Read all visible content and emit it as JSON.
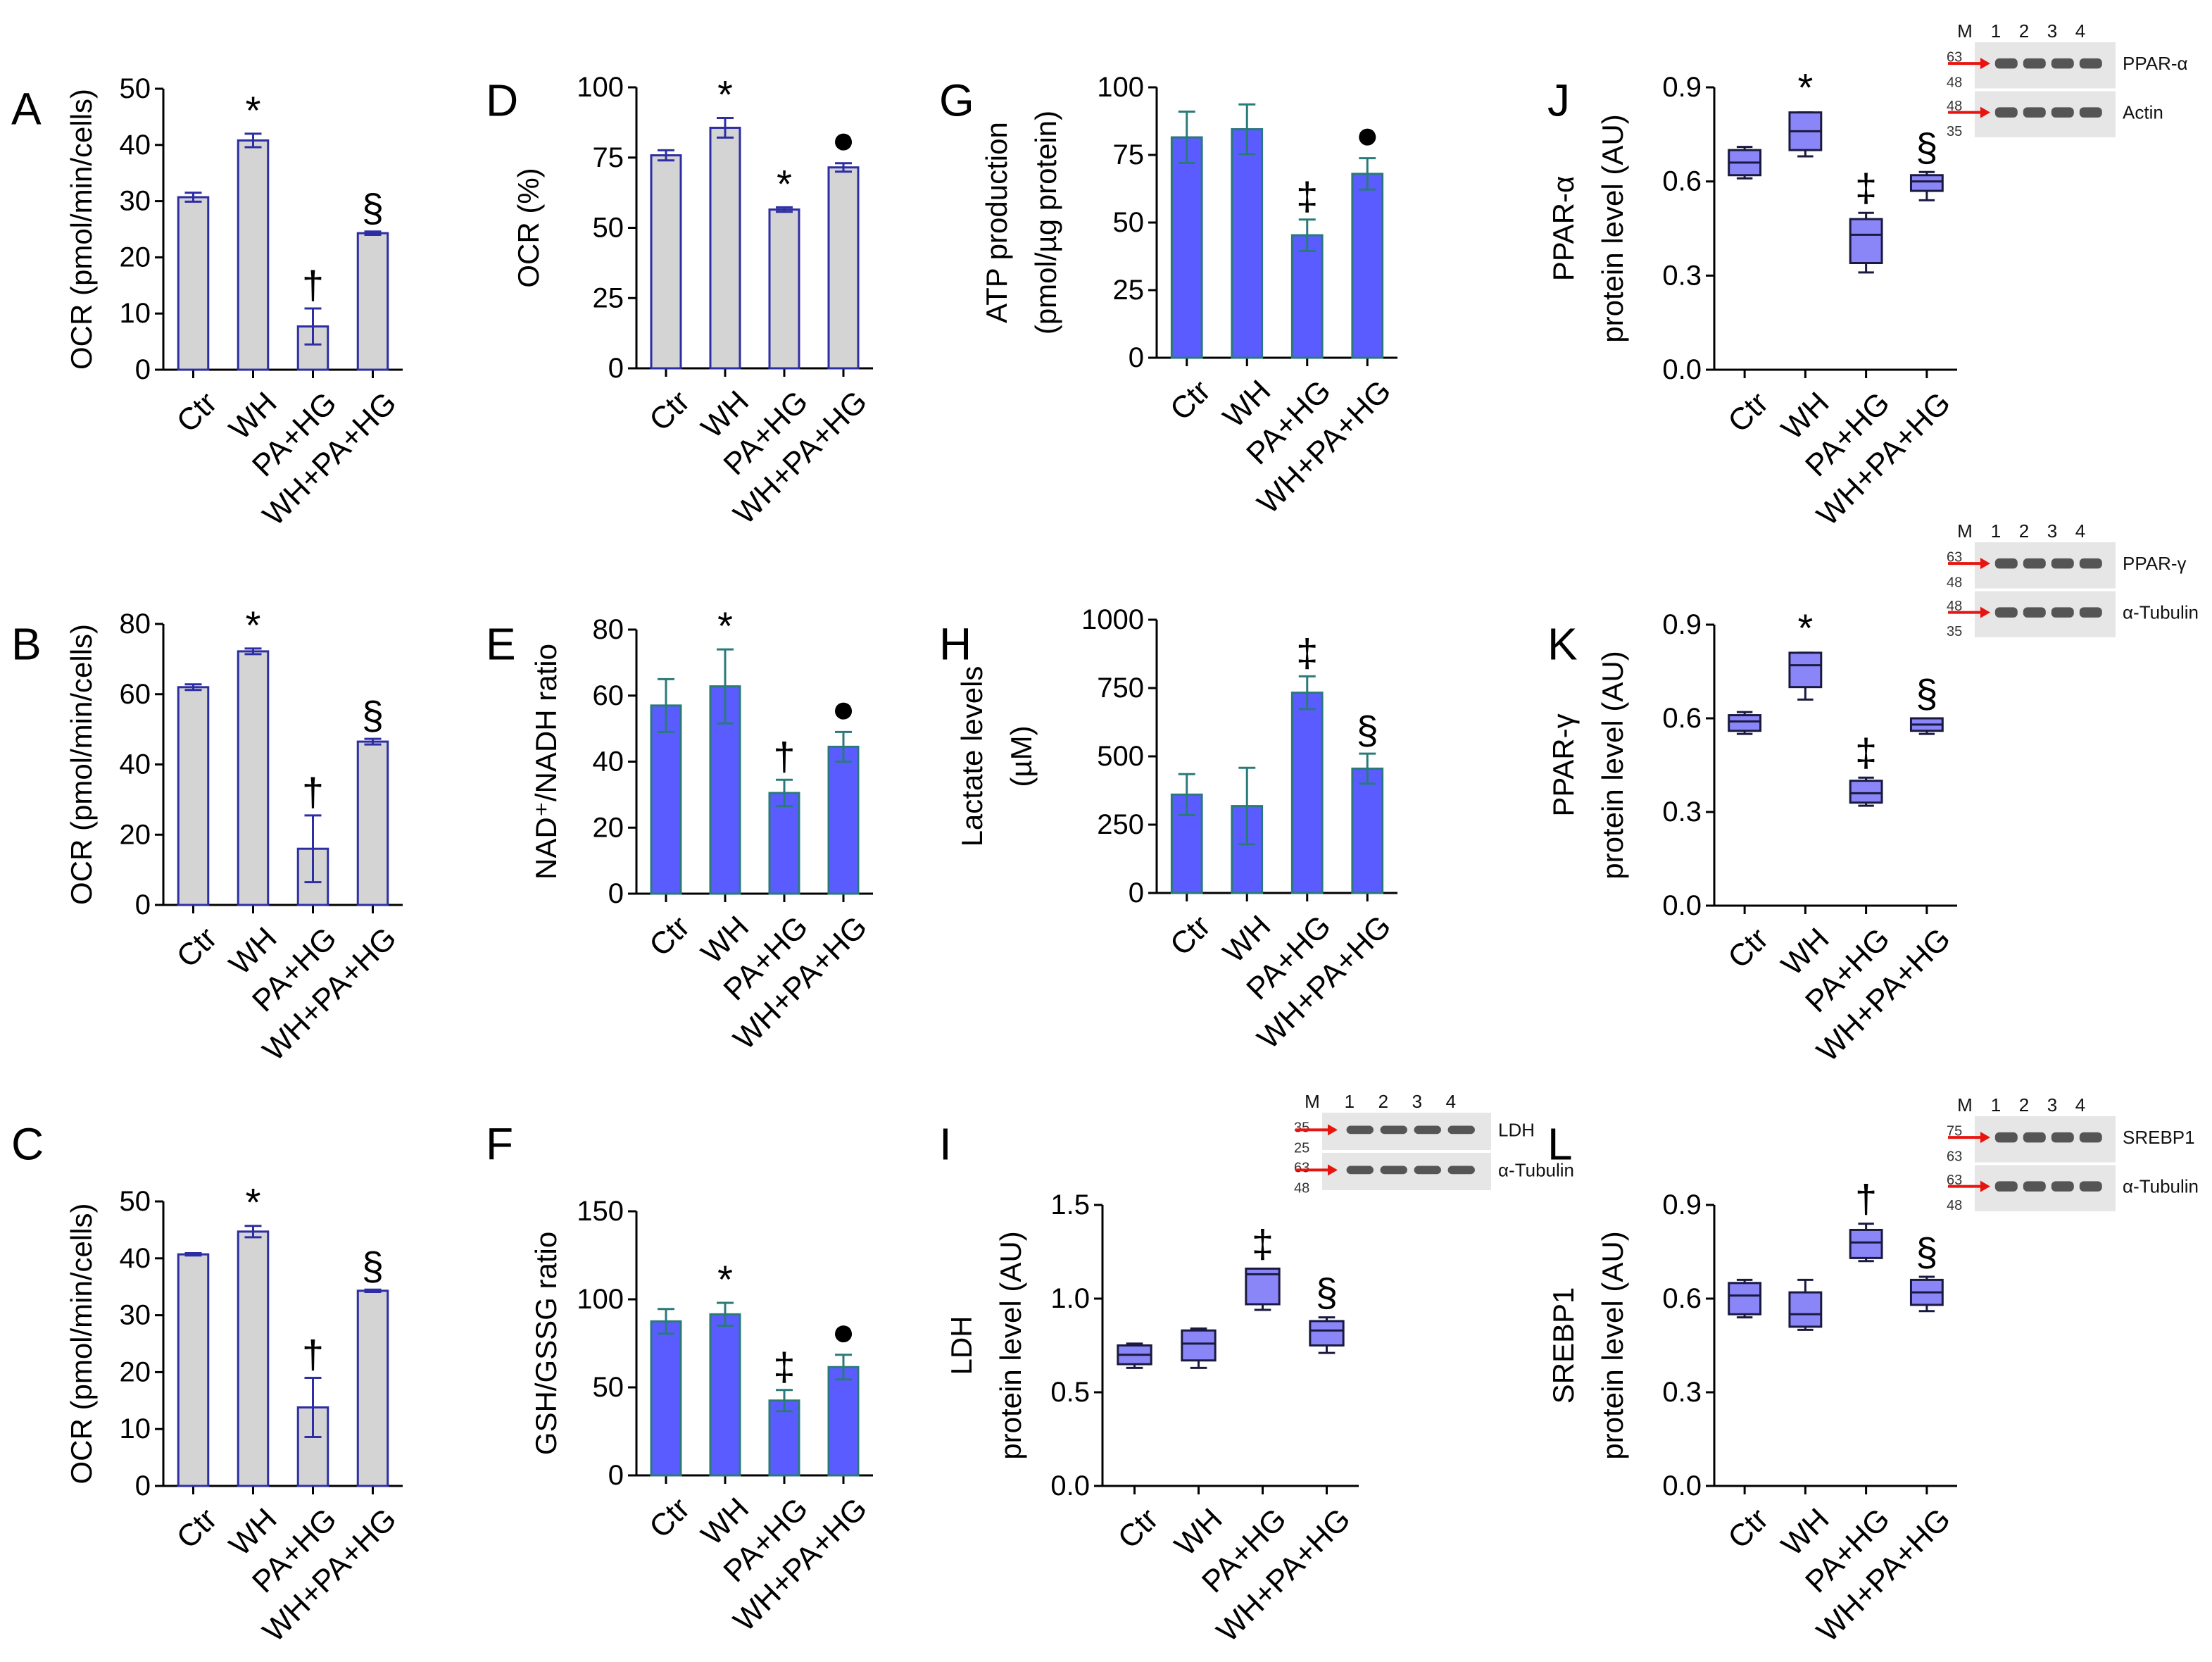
{
  "chart_data": [
    {
      "id": "A",
      "letter": "A",
      "type": "bar",
      "style": "gray",
      "categories": [
        "Ctr",
        "WH",
        "PA+HG",
        "WH+PA+HG"
      ],
      "values": [
        30.7,
        40.8,
        7.7,
        24.3
      ],
      "errors": [
        0.8,
        1.2,
        3.2,
        0.3
      ],
      "marks": [
        "",
        "*",
        "†",
        "§"
      ],
      "ylabel": [
        "OCR (pmol/min/cells)"
      ],
      "ylim": [
        0,
        50
      ],
      "ticks": [
        0,
        10,
        20,
        30,
        40,
        50
      ]
    },
    {
      "id": "B",
      "letter": "B",
      "type": "bar",
      "style": "gray",
      "categories": [
        "Ctr",
        "WH",
        "PA+HG",
        "WH+PA+HG"
      ],
      "values": [
        62,
        72.2,
        16,
        46.5
      ],
      "errors": [
        0.8,
        0.8,
        9.5,
        0.8
      ],
      "marks": [
        "",
        "*",
        "†",
        "§"
      ],
      "ylabel": [
        "OCR (pmol/min/cells)"
      ],
      "ylim": [
        0,
        80
      ],
      "ticks": [
        0,
        20,
        40,
        60,
        80
      ]
    },
    {
      "id": "C",
      "letter": "C",
      "type": "bar",
      "style": "gray",
      "categories": [
        "Ctr",
        "WH",
        "PA+HG",
        "WH+PA+HG"
      ],
      "values": [
        40.7,
        44.7,
        13.8,
        34.3
      ],
      "errors": [
        0.2,
        1.0,
        5.2,
        0.2
      ],
      "marks": [
        "",
        "*",
        "†",
        "§"
      ],
      "ylabel": [
        "OCR (pmol/min/cells)"
      ],
      "ylim": [
        0,
        50
      ],
      "ticks": [
        0,
        10,
        20,
        30,
        40,
        50
      ]
    },
    {
      "id": "D",
      "letter": "D",
      "type": "bar",
      "style": "gray",
      "categories": [
        "Ctr",
        "WH",
        "PA+HG",
        "WH+PA+HG"
      ],
      "values": [
        75.8,
        85.6,
        56.5,
        71.5
      ],
      "errors": [
        1.8,
        3.5,
        0.8,
        1.5
      ],
      "marks": [
        "",
        "*",
        "*",
        "●"
      ],
      "ylabel": [
        "OCR (%)"
      ],
      "ylim": [
        0,
        100
      ],
      "ticks": [
        0,
        25,
        50,
        75,
        100
      ]
    },
    {
      "id": "E",
      "letter": "E",
      "type": "bar",
      "style": "blue",
      "categories": [
        "Ctr",
        "WH",
        "PA+HG",
        "WH+PA+HG"
      ],
      "values": [
        57,
        62.8,
        30.5,
        44.5
      ],
      "errors": [
        8,
        11.2,
        4,
        4.5
      ],
      "marks": [
        "",
        "*",
        "†",
        "●"
      ],
      "ylabel": [
        "NAD⁺/NADH ratio"
      ],
      "ylim": [
        0,
        80
      ],
      "ticks": [
        0,
        20,
        40,
        60,
        80
      ]
    },
    {
      "id": "F",
      "letter": "F",
      "type": "bar",
      "style": "blue",
      "categories": [
        "Ctr",
        "WH",
        "PA+HG",
        "WH+PA+HG"
      ],
      "values": [
        87.5,
        91.5,
        42.5,
        61.5
      ],
      "errors": [
        7,
        6.5,
        6,
        7
      ],
      "marks": [
        "",
        "*",
        "‡",
        "●"
      ],
      "ylabel": [
        "GSH/GSSG ratio"
      ],
      "ylim": [
        0,
        150
      ],
      "ticks": [
        0,
        50,
        100,
        150
      ]
    },
    {
      "id": "G",
      "letter": "G",
      "type": "bar",
      "style": "blue",
      "categories": [
        "Ctr",
        "WH",
        "PA+HG",
        "WH+PA+HG"
      ],
      "values": [
        81.5,
        84.5,
        45.3,
        68
      ],
      "errors": [
        9.5,
        9.2,
        5.8,
        5.8
      ],
      "marks": [
        "",
        "",
        "‡",
        "●"
      ],
      "ylabel": [
        "ATP production",
        "(pmol/µg protein)"
      ],
      "ylim": [
        0,
        100
      ],
      "ticks": [
        0,
        25,
        50,
        75,
        100
      ]
    },
    {
      "id": "H",
      "letter": "H",
      "type": "bar",
      "style": "blue",
      "categories": [
        "Ctr",
        "WH",
        "PA+HG",
        "WH+PA+HG"
      ],
      "values": [
        360,
        318,
        733,
        455
      ],
      "errors": [
        75,
        140,
        60,
        55
      ],
      "marks": [
        "",
        "",
        "‡",
        "§"
      ],
      "ylabel": [
        "Lactate levels",
        "(µM)"
      ],
      "ylim": [
        0,
        1000
      ],
      "ticks": [
        0,
        250,
        500,
        750,
        1000
      ]
    },
    {
      "id": "I",
      "letter": "I",
      "type": "box",
      "categories": [
        "Ctr",
        "WH",
        "PA+HG",
        "WH+PA+HG"
      ],
      "boxes": [
        {
          "min": 0.63,
          "q1": 0.65,
          "median": 0.7,
          "q3": 0.75,
          "max": 0.76
        },
        {
          "min": 0.63,
          "q1": 0.67,
          "median": 0.76,
          "q3": 0.83,
          "max": 0.84
        },
        {
          "min": 0.94,
          "q1": 0.97,
          "median": 1.13,
          "q3": 1.16,
          "max": 1.16
        },
        {
          "min": 0.71,
          "q1": 0.75,
          "median": 0.83,
          "q3": 0.88,
          "max": 0.9
        }
      ],
      "marks": [
        "",
        "",
        "‡",
        "§"
      ],
      "ylabel": [
        "LDH",
        "protein level (AU)"
      ],
      "ylim": [
        0,
        1.5
      ],
      "ticks": [
        0.0,
        0.5,
        1.0,
        1.5
      ],
      "tick_format": "1dp",
      "blot": {
        "lanes": [
          "M",
          "1",
          "2",
          "3",
          "4"
        ],
        "bands": [
          {
            "label": "LDH",
            "markers": [
              "35",
              "25"
            ]
          },
          {
            "label": "α-Tubulin",
            "markers": [
              "63",
              "48"
            ]
          }
        ]
      }
    },
    {
      "id": "J",
      "letter": "J",
      "type": "box",
      "categories": [
        "Ctr",
        "WH",
        "PA+HG",
        "WH+PA+HG"
      ],
      "boxes": [
        {
          "min": 0.61,
          "q1": 0.62,
          "median": 0.66,
          "q3": 0.7,
          "max": 0.71
        },
        {
          "min": 0.68,
          "q1": 0.7,
          "median": 0.76,
          "q3": 0.82,
          "max": 0.82
        },
        {
          "min": 0.31,
          "q1": 0.34,
          "median": 0.43,
          "q3": 0.48,
          "max": 0.5
        },
        {
          "min": 0.54,
          "q1": 0.57,
          "median": 0.6,
          "q3": 0.62,
          "max": 0.63
        }
      ],
      "marks": [
        "",
        "*",
        "‡",
        "§"
      ],
      "ylabel": [
        "PPAR-α",
        "protein level (AU)"
      ],
      "ylim": [
        0,
        0.9
      ],
      "ticks": [
        0.0,
        0.3,
        0.6,
        0.9
      ],
      "tick_format": "1dp",
      "blot": {
        "lanes": [
          "M",
          "1",
          "2",
          "3",
          "4"
        ],
        "bands": [
          {
            "label": "PPAR-α",
            "markers": [
              "63",
              "48"
            ]
          },
          {
            "label": "Actin",
            "markers": [
              "48",
              "35"
            ]
          }
        ]
      }
    },
    {
      "id": "K",
      "letter": "K",
      "type": "box",
      "categories": [
        "Ctr",
        "WH",
        "PA+HG",
        "WH+PA+HG"
      ],
      "boxes": [
        {
          "min": 0.55,
          "q1": 0.56,
          "median": 0.59,
          "q3": 0.61,
          "max": 0.62
        },
        {
          "min": 0.66,
          "q1": 0.7,
          "median": 0.77,
          "q3": 0.81,
          "max": 0.81
        },
        {
          "min": 0.32,
          "q1": 0.33,
          "median": 0.36,
          "q3": 0.4,
          "max": 0.41
        },
        {
          "min": 0.55,
          "q1": 0.56,
          "median": 0.58,
          "q3": 0.6,
          "max": 0.6
        }
      ],
      "marks": [
        "",
        "*",
        "‡",
        "§"
      ],
      "ylabel": [
        "PPAR-γ",
        "protein level (AU)"
      ],
      "ylim": [
        0,
        0.9
      ],
      "ticks": [
        0.0,
        0.3,
        0.6,
        0.9
      ],
      "tick_format": "1dp",
      "blot": {
        "lanes": [
          "M",
          "1",
          "2",
          "3",
          "4"
        ],
        "bands": [
          {
            "label": "PPAR-γ",
            "markers": [
              "63",
              "48"
            ]
          },
          {
            "label": "α-Tubulin",
            "markers": [
              "48",
              "35"
            ]
          }
        ]
      }
    },
    {
      "id": "L",
      "letter": "L",
      "type": "box",
      "categories": [
        "Ctr",
        "WH",
        "PA+HG",
        "WH+PA+HG"
      ],
      "boxes": [
        {
          "min": 0.54,
          "q1": 0.55,
          "median": 0.61,
          "q3": 0.65,
          "max": 0.66
        },
        {
          "min": 0.5,
          "q1": 0.51,
          "median": 0.55,
          "q3": 0.62,
          "max": 0.66
        },
        {
          "min": 0.72,
          "q1": 0.73,
          "median": 0.78,
          "q3": 0.82,
          "max": 0.84
        },
        {
          "min": 0.56,
          "q1": 0.58,
          "median": 0.62,
          "q3": 0.66,
          "max": 0.67
        }
      ],
      "marks": [
        "",
        "",
        "†",
        "§"
      ],
      "ylabel": [
        "SREBP1",
        "protein level (AU)"
      ],
      "ylim": [
        0,
        0.9
      ],
      "ticks": [
        0.0,
        0.3,
        0.6,
        0.9
      ],
      "tick_format": "1dp",
      "blot": {
        "lanes": [
          "M",
          "1",
          "2",
          "3",
          "4"
        ],
        "bands": [
          {
            "label": "SREBP1",
            "markers": [
              "75",
              "63"
            ]
          },
          {
            "label": "α-Tubulin",
            "markers": [
              "63",
              "48"
            ]
          }
        ]
      }
    }
  ],
  "colors": {
    "gray_fill": "#d4d4d4",
    "gray_edge": "#2e2ea4",
    "blue_fill": "#5a5cff",
    "blue_edge": "#2b7a7a",
    "box_fill": "#8a86f8",
    "box_edge": "#1a1a40",
    "arrow": "#e8140f"
  }
}
